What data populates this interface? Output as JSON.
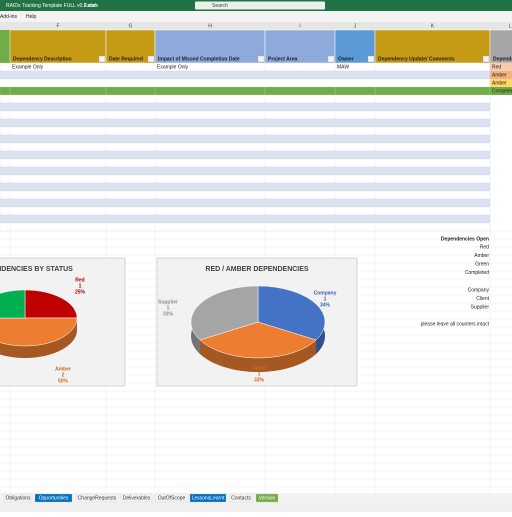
{
  "window": {
    "title": "RAIDs Tracking Template FULL v0.2.xlsm",
    "app": "Excel",
    "search": "Search"
  },
  "menu": [
    "Add-ins",
    "Help"
  ],
  "columns": [
    "F",
    "G",
    "H",
    "I",
    "J",
    "K",
    "L"
  ],
  "table": {
    "headers": [
      "Dependency Description",
      "Date Required",
      "Impact of Missed Completion Date",
      "Project Area",
      "Owner",
      "Dependency Update/ Comments",
      "Dependency Status"
    ],
    "example_row": {
      "description": "Example Only",
      "impact": "Example Only",
      "owner": "MAW"
    },
    "status_cells": [
      "Red",
      "Amber",
      "Amber",
      "Complete"
    ]
  },
  "summary": {
    "title": "Dependencies Open",
    "status": [
      "Red",
      "Amber",
      "Green",
      "Completed"
    ],
    "areas": [
      "Company",
      "Client",
      "Supplier"
    ],
    "note": "please leave all counters intact"
  },
  "charts": [
    {
      "type": "pie",
      "title": "DEPENDENCIES BY STATUS",
      "categories": [
        "Red",
        "Amber",
        null
      ],
      "values": [
        1,
        2,
        1
      ],
      "percent_labels": [
        "25%",
        "50%",
        null
      ],
      "colors": [
        "#c00000",
        "#ed7d31",
        "#00b050"
      ]
    },
    {
      "type": "pie",
      "title": "RED / AMBER DEPENDENCIES",
      "categories": [
        "Company",
        "Client",
        "Supplier"
      ],
      "values": [
        1,
        1,
        1
      ],
      "percent_labels": [
        "34%",
        "33%",
        "33%"
      ],
      "colors": [
        "#4472c4",
        "#ed7d31",
        "#a5a5a5"
      ]
    }
  ],
  "sheet_tabs": [
    "Obligations",
    "Opportunities",
    "ChangeRequests",
    "Deliverables",
    "OutOfScope",
    "LessonsLearnt",
    "Contacts",
    "Version"
  ]
}
